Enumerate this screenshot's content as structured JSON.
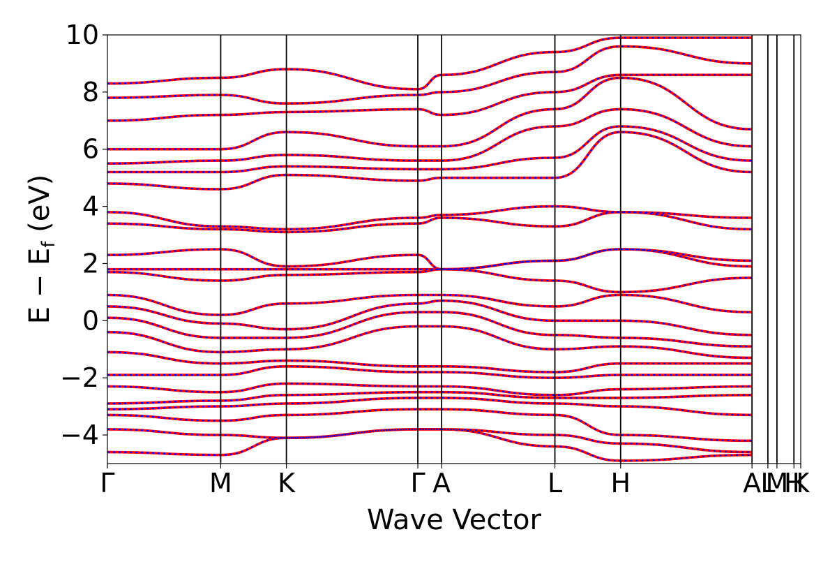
{
  "chart_data": {
    "type": "line",
    "title": "",
    "xlabel": "Wave Vector",
    "ylabel": "E − E_f (eV)",
    "ylabel_main": "E − E",
    "ylabel_sub": "f",
    "ylabel_unit": " (eV)",
    "ylim": [
      -5,
      10
    ],
    "yticks": [
      -4,
      -2,
      0,
      2,
      4,
      6,
      8,
      10
    ],
    "grid": false,
    "legend": "none",
    "high_symmetry_points": [
      {
        "label": "Γ",
        "k": 0.0
      },
      {
        "label": "M",
        "k": 1.0
      },
      {
        "label": "K",
        "k": 1.58
      },
      {
        "label": "Γ",
        "k": 2.74
      },
      {
        "label": "A",
        "k": 2.95
      },
      {
        "label": "L",
        "k": 3.95
      },
      {
        "label": "H",
        "k": 4.53
      },
      {
        "label": "A",
        "k": 5.69
      },
      {
        "label": "L",
        "k": 5.83
      },
      {
        "label": "M",
        "k": 5.91
      },
      {
        "label": "H",
        "k": 6.06
      },
      {
        "label": "K",
        "k": 6.12
      }
    ],
    "series": [
      {
        "color": "#ff0000",
        "style": "solid",
        "bands": [
          [
            -4.6,
            -4.7,
            -4.1,
            -3.8,
            -3.8,
            -4.4,
            -4.9,
            -4.7
          ],
          [
            -3.8,
            -4.0,
            -4.1,
            -3.8,
            -3.8,
            -4.0,
            -4.3,
            -4.6
          ],
          [
            -3.3,
            -3.5,
            -3.3,
            -3.1,
            -3.1,
            -3.3,
            -4.0,
            -4.2
          ],
          [
            -3.1,
            -3.0,
            -2.9,
            -2.7,
            -2.7,
            -2.9,
            -3.0,
            -3.3
          ],
          [
            -2.9,
            -2.8,
            -2.6,
            -2.5,
            -2.5,
            -2.7,
            -2.7,
            -2.6
          ],
          [
            -2.3,
            -2.5,
            -2.2,
            -2.3,
            -2.3,
            -2.6,
            -2.4,
            -2.3
          ],
          [
            -1.9,
            -1.9,
            -1.6,
            -1.8,
            -1.8,
            -2.0,
            -1.9,
            -1.9
          ],
          [
            -1.1,
            -1.5,
            -1.4,
            -1.6,
            -1.6,
            -1.8,
            -1.5,
            -1.5
          ],
          [
            -0.4,
            -1.1,
            -1.0,
            -0.2,
            -0.2,
            -1.0,
            -0.9,
            -1.3
          ],
          [
            0.1,
            -0.6,
            -0.6,
            0.3,
            0.3,
            -0.5,
            -0.6,
            -0.9
          ],
          [
            0.5,
            -0.1,
            -0.3,
            0.6,
            0.7,
            0.0,
            0.0,
            -0.5
          ],
          [
            0.9,
            0.2,
            0.6,
            0.9,
            0.9,
            0.5,
            0.9,
            0.3
          ],
          [
            1.7,
            1.4,
            1.6,
            1.7,
            1.8,
            1.4,
            1.0,
            1.5
          ],
          [
            1.8,
            1.8,
            1.8,
            1.8,
            1.8,
            2.1,
            2.5,
            1.9
          ],
          [
            2.3,
            2.5,
            1.9,
            2.3,
            1.8,
            2.1,
            2.5,
            2.1
          ],
          [
            3.4,
            3.2,
            3.1,
            3.4,
            3.6,
            3.3,
            3.8,
            3.2
          ],
          [
            3.8,
            3.3,
            3.2,
            3.6,
            3.7,
            4.0,
            3.8,
            3.6
          ],
          [
            4.8,
            4.6,
            5.1,
            4.9,
            5.0,
            5.0,
            6.6,
            5.2
          ],
          [
            5.2,
            5.2,
            5.4,
            5.3,
            5.3,
            5.7,
            6.8,
            5.6
          ],
          [
            5.5,
            5.6,
            5.8,
            5.6,
            5.6,
            6.8,
            7.4,
            6.1
          ],
          [
            6.0,
            6.0,
            6.6,
            6.1,
            6.1,
            7.4,
            8.5,
            6.7
          ],
          [
            7.0,
            7.2,
            7.3,
            7.4,
            7.2,
            8.0,
            8.6,
            8.6
          ],
          [
            7.8,
            7.9,
            7.6,
            7.9,
            8.0,
            8.7,
            9.6,
            9.0
          ],
          [
            8.3,
            8.5,
            8.8,
            8.1,
            8.6,
            9.4,
            9.9,
            9.9
          ]
        ]
      },
      {
        "color": "#0000ff",
        "style": "dotted",
        "bands": [
          [
            -4.6,
            -4.7,
            -4.1,
            -3.8,
            -3.8,
            -4.4,
            -4.9,
            -4.7
          ],
          [
            -3.8,
            -4.0,
            -4.1,
            -3.8,
            -3.8,
            -4.0,
            -4.3,
            -4.6
          ],
          [
            -3.3,
            -3.5,
            -3.3,
            -3.1,
            -3.1,
            -3.3,
            -4.0,
            -4.2
          ],
          [
            -3.1,
            -3.0,
            -2.9,
            -2.7,
            -2.7,
            -2.9,
            -3.0,
            -3.3
          ],
          [
            -2.9,
            -2.8,
            -2.6,
            -2.5,
            -2.5,
            -2.7,
            -2.7,
            -2.6
          ],
          [
            -2.3,
            -2.5,
            -2.2,
            -2.3,
            -2.3,
            -2.6,
            -2.4,
            -2.3
          ],
          [
            -1.9,
            -1.9,
            -1.6,
            -1.8,
            -1.8,
            -2.0,
            -1.9,
            -1.9
          ],
          [
            -1.1,
            -1.5,
            -1.4,
            -1.6,
            -1.6,
            -1.8,
            -1.5,
            -1.5
          ],
          [
            -0.4,
            -1.1,
            -1.0,
            -0.2,
            -0.2,
            -1.0,
            -0.9,
            -1.3
          ],
          [
            0.1,
            -0.6,
            -0.6,
            0.3,
            0.3,
            -0.5,
            -0.6,
            -0.9
          ],
          [
            0.5,
            -0.1,
            -0.3,
            0.6,
            0.7,
            0.0,
            0.0,
            -0.5
          ],
          [
            0.9,
            0.2,
            0.6,
            0.9,
            0.9,
            0.5,
            0.9,
            0.3
          ],
          [
            1.7,
            1.4,
            1.6,
            1.7,
            1.8,
            1.4,
            1.0,
            1.5
          ],
          [
            1.8,
            1.8,
            1.8,
            1.8,
            1.8,
            2.1,
            2.5,
            1.9
          ],
          [
            2.3,
            2.5,
            1.9,
            2.3,
            1.8,
            2.1,
            2.5,
            2.1
          ],
          [
            3.4,
            3.2,
            3.1,
            3.4,
            3.6,
            3.3,
            3.8,
            3.2
          ],
          [
            3.8,
            3.3,
            3.2,
            3.6,
            3.7,
            4.0,
            3.8,
            3.6
          ],
          [
            4.8,
            4.6,
            5.1,
            4.9,
            5.0,
            5.0,
            6.6,
            5.2
          ],
          [
            5.2,
            5.2,
            5.4,
            5.3,
            5.3,
            5.7,
            6.8,
            5.6
          ],
          [
            5.5,
            5.6,
            5.8,
            5.6,
            5.6,
            6.8,
            7.4,
            6.1
          ],
          [
            6.0,
            6.0,
            6.6,
            6.1,
            6.1,
            7.4,
            8.5,
            6.7
          ],
          [
            7.0,
            7.2,
            7.3,
            7.4,
            7.2,
            8.0,
            8.6,
            8.6
          ],
          [
            7.8,
            7.9,
            7.6,
            7.9,
            8.0,
            8.7,
            9.6,
            9.0
          ],
          [
            8.3,
            8.5,
            8.8,
            8.1,
            8.6,
            9.4,
            9.9,
            9.9
          ]
        ]
      }
    ]
  }
}
